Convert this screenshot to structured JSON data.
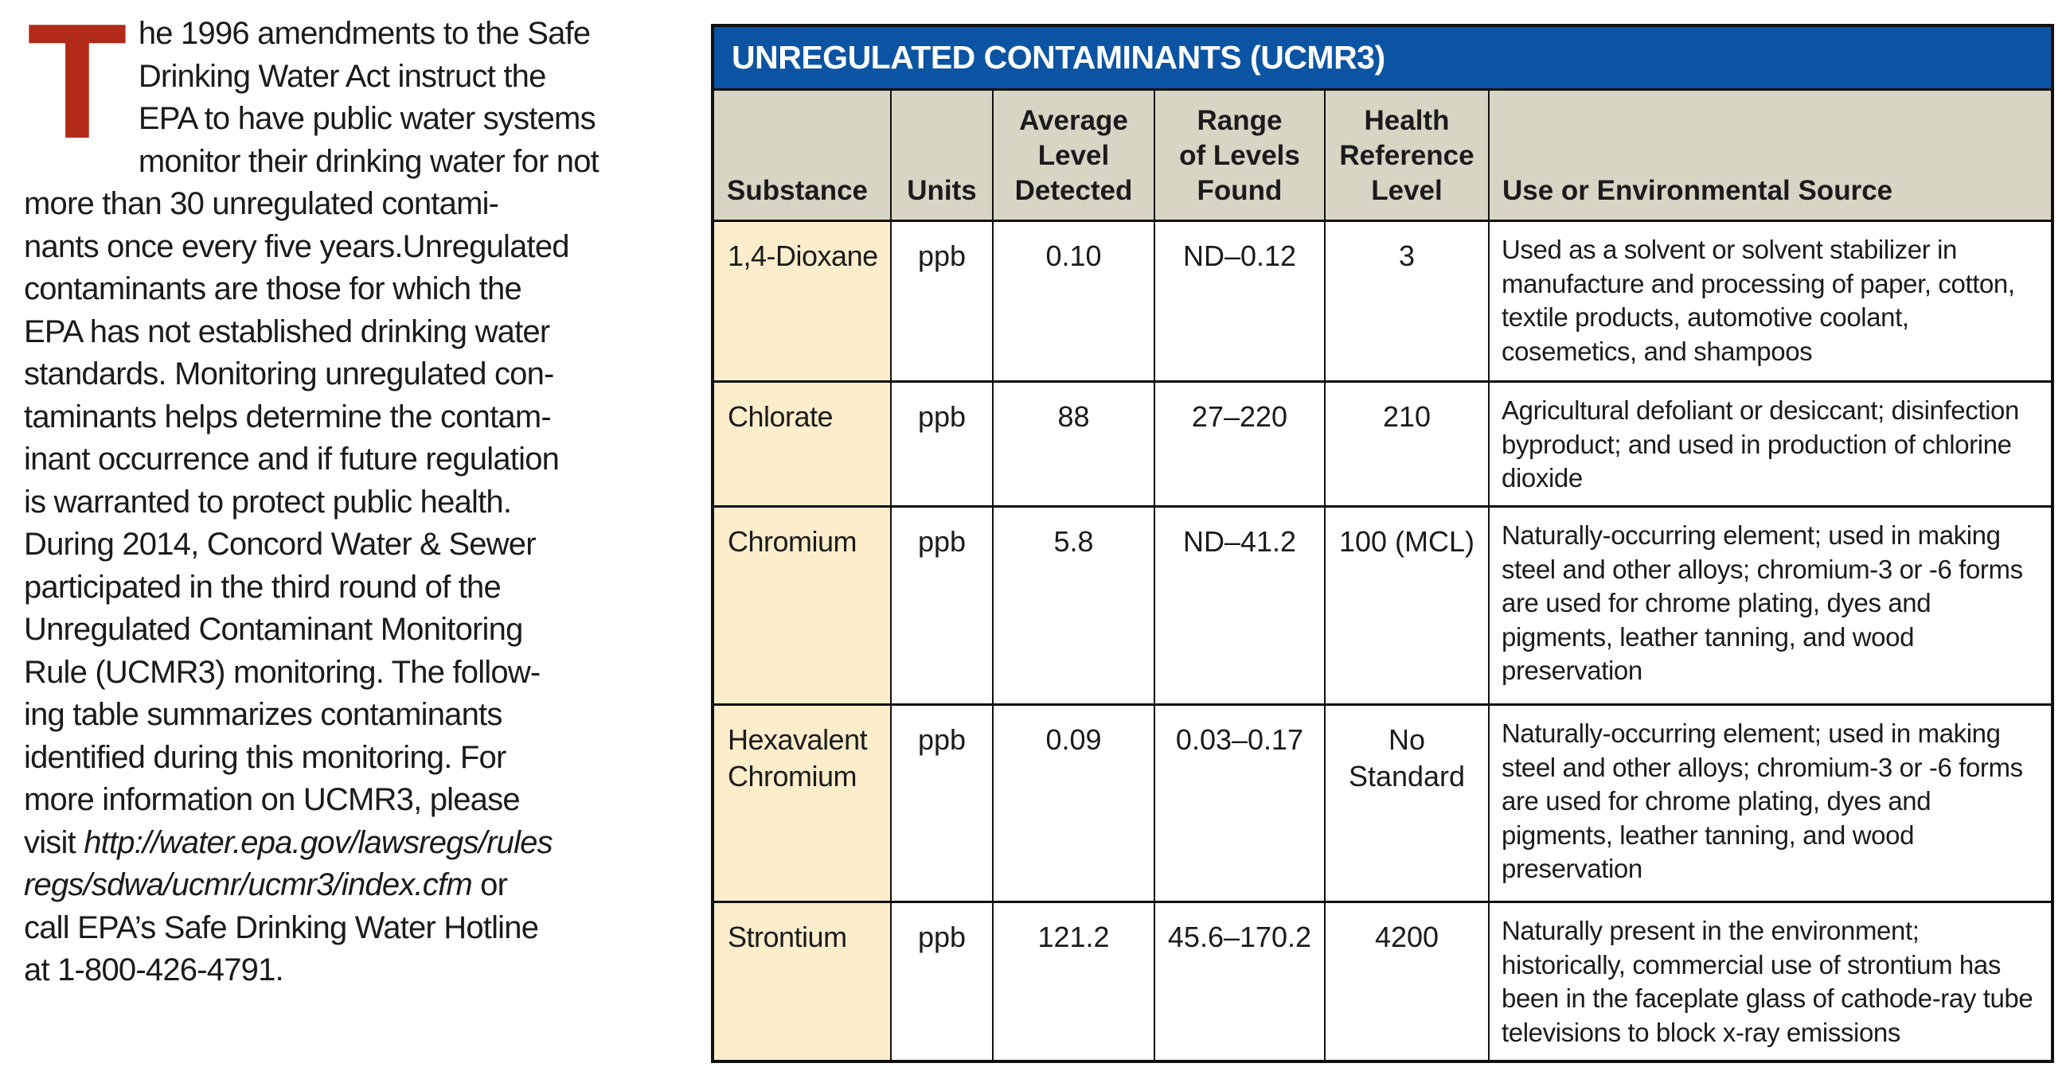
{
  "intro": {
    "drop_cap": "T",
    "drop_cap_color": "#b22a18",
    "lines": [
      [
        {
          "t": "he 1996 amendments to the Safe"
        }
      ],
      [
        {
          "t": "Drinking Water Act instruct the"
        }
      ],
      [
        {
          "t": "EPA to have public water systems"
        }
      ],
      [
        {
          "t": "monitor their drinking water for not"
        }
      ],
      [
        {
          "t": "more than 30 unregulated contami-"
        }
      ],
      [
        {
          "t": "nants once every five years.Unregulated"
        }
      ],
      [
        {
          "t": "contaminants are those for which the"
        }
      ],
      [
        {
          "t": "EPA has not established drinking water"
        }
      ],
      [
        {
          "t": "standards. Monitoring unregulated con-"
        }
      ],
      [
        {
          "t": "taminants helps determine the contam-"
        }
      ],
      [
        {
          "t": "inant occurrence and if future regulation"
        }
      ],
      [
        {
          "t": "is warranted to protect public health."
        }
      ],
      [
        {
          "t": "During 2014, Concord Water & Sewer"
        }
      ],
      [
        {
          "t": "participated in the third round of the"
        }
      ],
      [
        {
          "t": "Unregulated Contaminant Monitoring"
        }
      ],
      [
        {
          "t": "Rule (UCMR3) monitoring. The follow-"
        }
      ],
      [
        {
          "t": "ing table summarizes contaminants"
        }
      ],
      [
        {
          "t": "identified during this monitoring. For"
        }
      ],
      [
        {
          "t": "more information on UCMR3, please"
        }
      ],
      [
        {
          "t": "visit "
        },
        {
          "t": "http://water.epa.gov/lawsregs/rules",
          "i": 1
        }
      ],
      [
        {
          "t": "regs/sdwa/ucmr/ucmr3/index.cfm",
          "i": 1
        },
        {
          "t": " or"
        }
      ],
      [
        {
          "t": "call EPA’s Safe Drinking Water Hotline"
        }
      ],
      [
        {
          "t": "at 1-800-426-4791."
        }
      ]
    ]
  },
  "table": {
    "title": "UNREGULATED CONTAMINANTS (UCMR3)",
    "title_bg": "#0b54a3",
    "header_bg": "#d8d5c4",
    "substance_col_bg": "#fcedcb",
    "columns": [
      "Substance",
      "Units",
      "Average\nLevel\nDetected",
      "Range\nof Levels\nFound",
      "Health\nReference\nLevel",
      "Use or Environmental Source"
    ],
    "rows": [
      {
        "substance": "1,4-Dioxane",
        "units": "ppb",
        "average": "0.10",
        "range": "ND–0.12",
        "health_ref": "3",
        "source": "Used as a solvent or solvent stabilizer in manufacture and processing of paper, cotton, textile products, automotive coolant, cosemetics, and shampoos"
      },
      {
        "substance": "Chlorate",
        "units": "ppb",
        "average": "88",
        "range": "27–220",
        "health_ref": "210",
        "source": "Agricultural defoliant or desiccant; disinfection byproduct; and used in production of chlorine dioxide"
      },
      {
        "substance": "Chromium",
        "units": "ppb",
        "average": "5.8",
        "range": "ND–41.2",
        "health_ref": "100 (MCL)",
        "source": "Naturally-occurring element; used in making steel and other alloys; chromium-3 or -6 forms are used for chrome plating, dyes and pigments, leather tanning, and wood preservation"
      },
      {
        "substance": "Hexavalent Chromium",
        "units": "ppb",
        "average": "0.09",
        "range": "0.03–0.17",
        "health_ref": "No\nStandard",
        "source": "Naturally-occurring element; used in making steel and other alloys; chromium-3 or -6 forms are used for chrome plating, dyes and pigments, leather tanning, and wood preservation"
      },
      {
        "substance": "Strontium",
        "units": "ppb",
        "average": "121.2",
        "range": "45.6–170.2",
        "health_ref": "4200",
        "source": "Naturally present in the environment; historically, commercial use of strontium has been in the faceplate glass of cathode-ray tube televisions to block x-ray emissions"
      }
    ]
  }
}
